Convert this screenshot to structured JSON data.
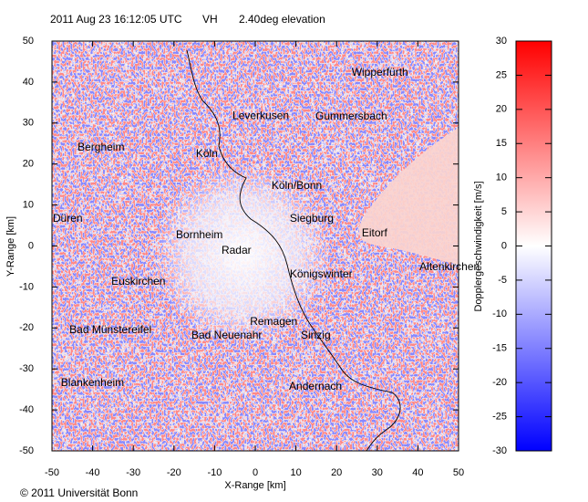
{
  "chart_data": {
    "type": "radar_ppi",
    "title": "2011 Aug 23 16:12:05 UTC",
    "product": "VH",
    "elevation": "2.40deg elevation",
    "x_label": "X-Range [km]",
    "y_label": "Y-Range [km]",
    "colorbar_label": "Dopplergeschwindigkeit [m/s]",
    "copyright": "© 2011 Universität Bonn",
    "xlim": [
      -50,
      50
    ],
    "ylim": [
      -50,
      50
    ],
    "xticks": [
      -50,
      -40,
      -30,
      -20,
      -10,
      0,
      10,
      20,
      30,
      40,
      50
    ],
    "yticks": [
      -50,
      -40,
      -30,
      -20,
      -10,
      0,
      10,
      20,
      30,
      40,
      50
    ],
    "zlim": [
      -30,
      30
    ],
    "zticks": [
      -30,
      -25,
      -20,
      -15,
      -10,
      -5,
      0,
      5,
      10,
      15,
      20,
      25,
      30
    ],
    "colormap": [
      "#0000ff",
      "#ffffff",
      "#ff0000"
    ],
    "annotations": [
      {
        "text": "Wipperfürth",
        "x": 23.7,
        "y": 42.2
      },
      {
        "text": "Leverkusen",
        "x": -5.6,
        "y": 31.7
      },
      {
        "text": "Gummersbach",
        "x": 14.8,
        "y": 31.5
      },
      {
        "text": "Bergheim",
        "x": -43.7,
        "y": 24.0
      },
      {
        "text": "Köln",
        "x": -14.6,
        "y": 22.4
      },
      {
        "text": "Köln/Bonn",
        "x": 4.0,
        "y": 14.6
      },
      {
        "text": "Düren",
        "x": -49.8,
        "y": 6.6
      },
      {
        "text": "Siegburg",
        "x": 8.5,
        "y": 6.6
      },
      {
        "text": "Eitorf",
        "x": 26.2,
        "y": 3.0
      },
      {
        "text": "Bornheim",
        "x": -19.5,
        "y": 2.6
      },
      {
        "text": "Radar",
        "x": -8.3,
        "y": -1.2
      },
      {
        "text": "Altenkirchen",
        "x": 40.4,
        "y": -5.2
      },
      {
        "text": "Königswinter",
        "x": 8.5,
        "y": -7.0
      },
      {
        "text": "Euskirchen",
        "x": -35.4,
        "y": -8.8
      },
      {
        "text": "Remagen",
        "x": -1.3,
        "y": -18.6
      },
      {
        "text": "Bad Münstereifel",
        "x": -45.7,
        "y": -20.6
      },
      {
        "text": "Bad Neuenahr",
        "x": -15.7,
        "y": -21.9
      },
      {
        "text": "Sinzig",
        "x": 11.2,
        "y": -21.9
      },
      {
        "text": "Blankenheim",
        "x": -47.8,
        "y": -33.5
      },
      {
        "text": "Andernach",
        "x": 8.3,
        "y": -34.4
      }
    ]
  }
}
